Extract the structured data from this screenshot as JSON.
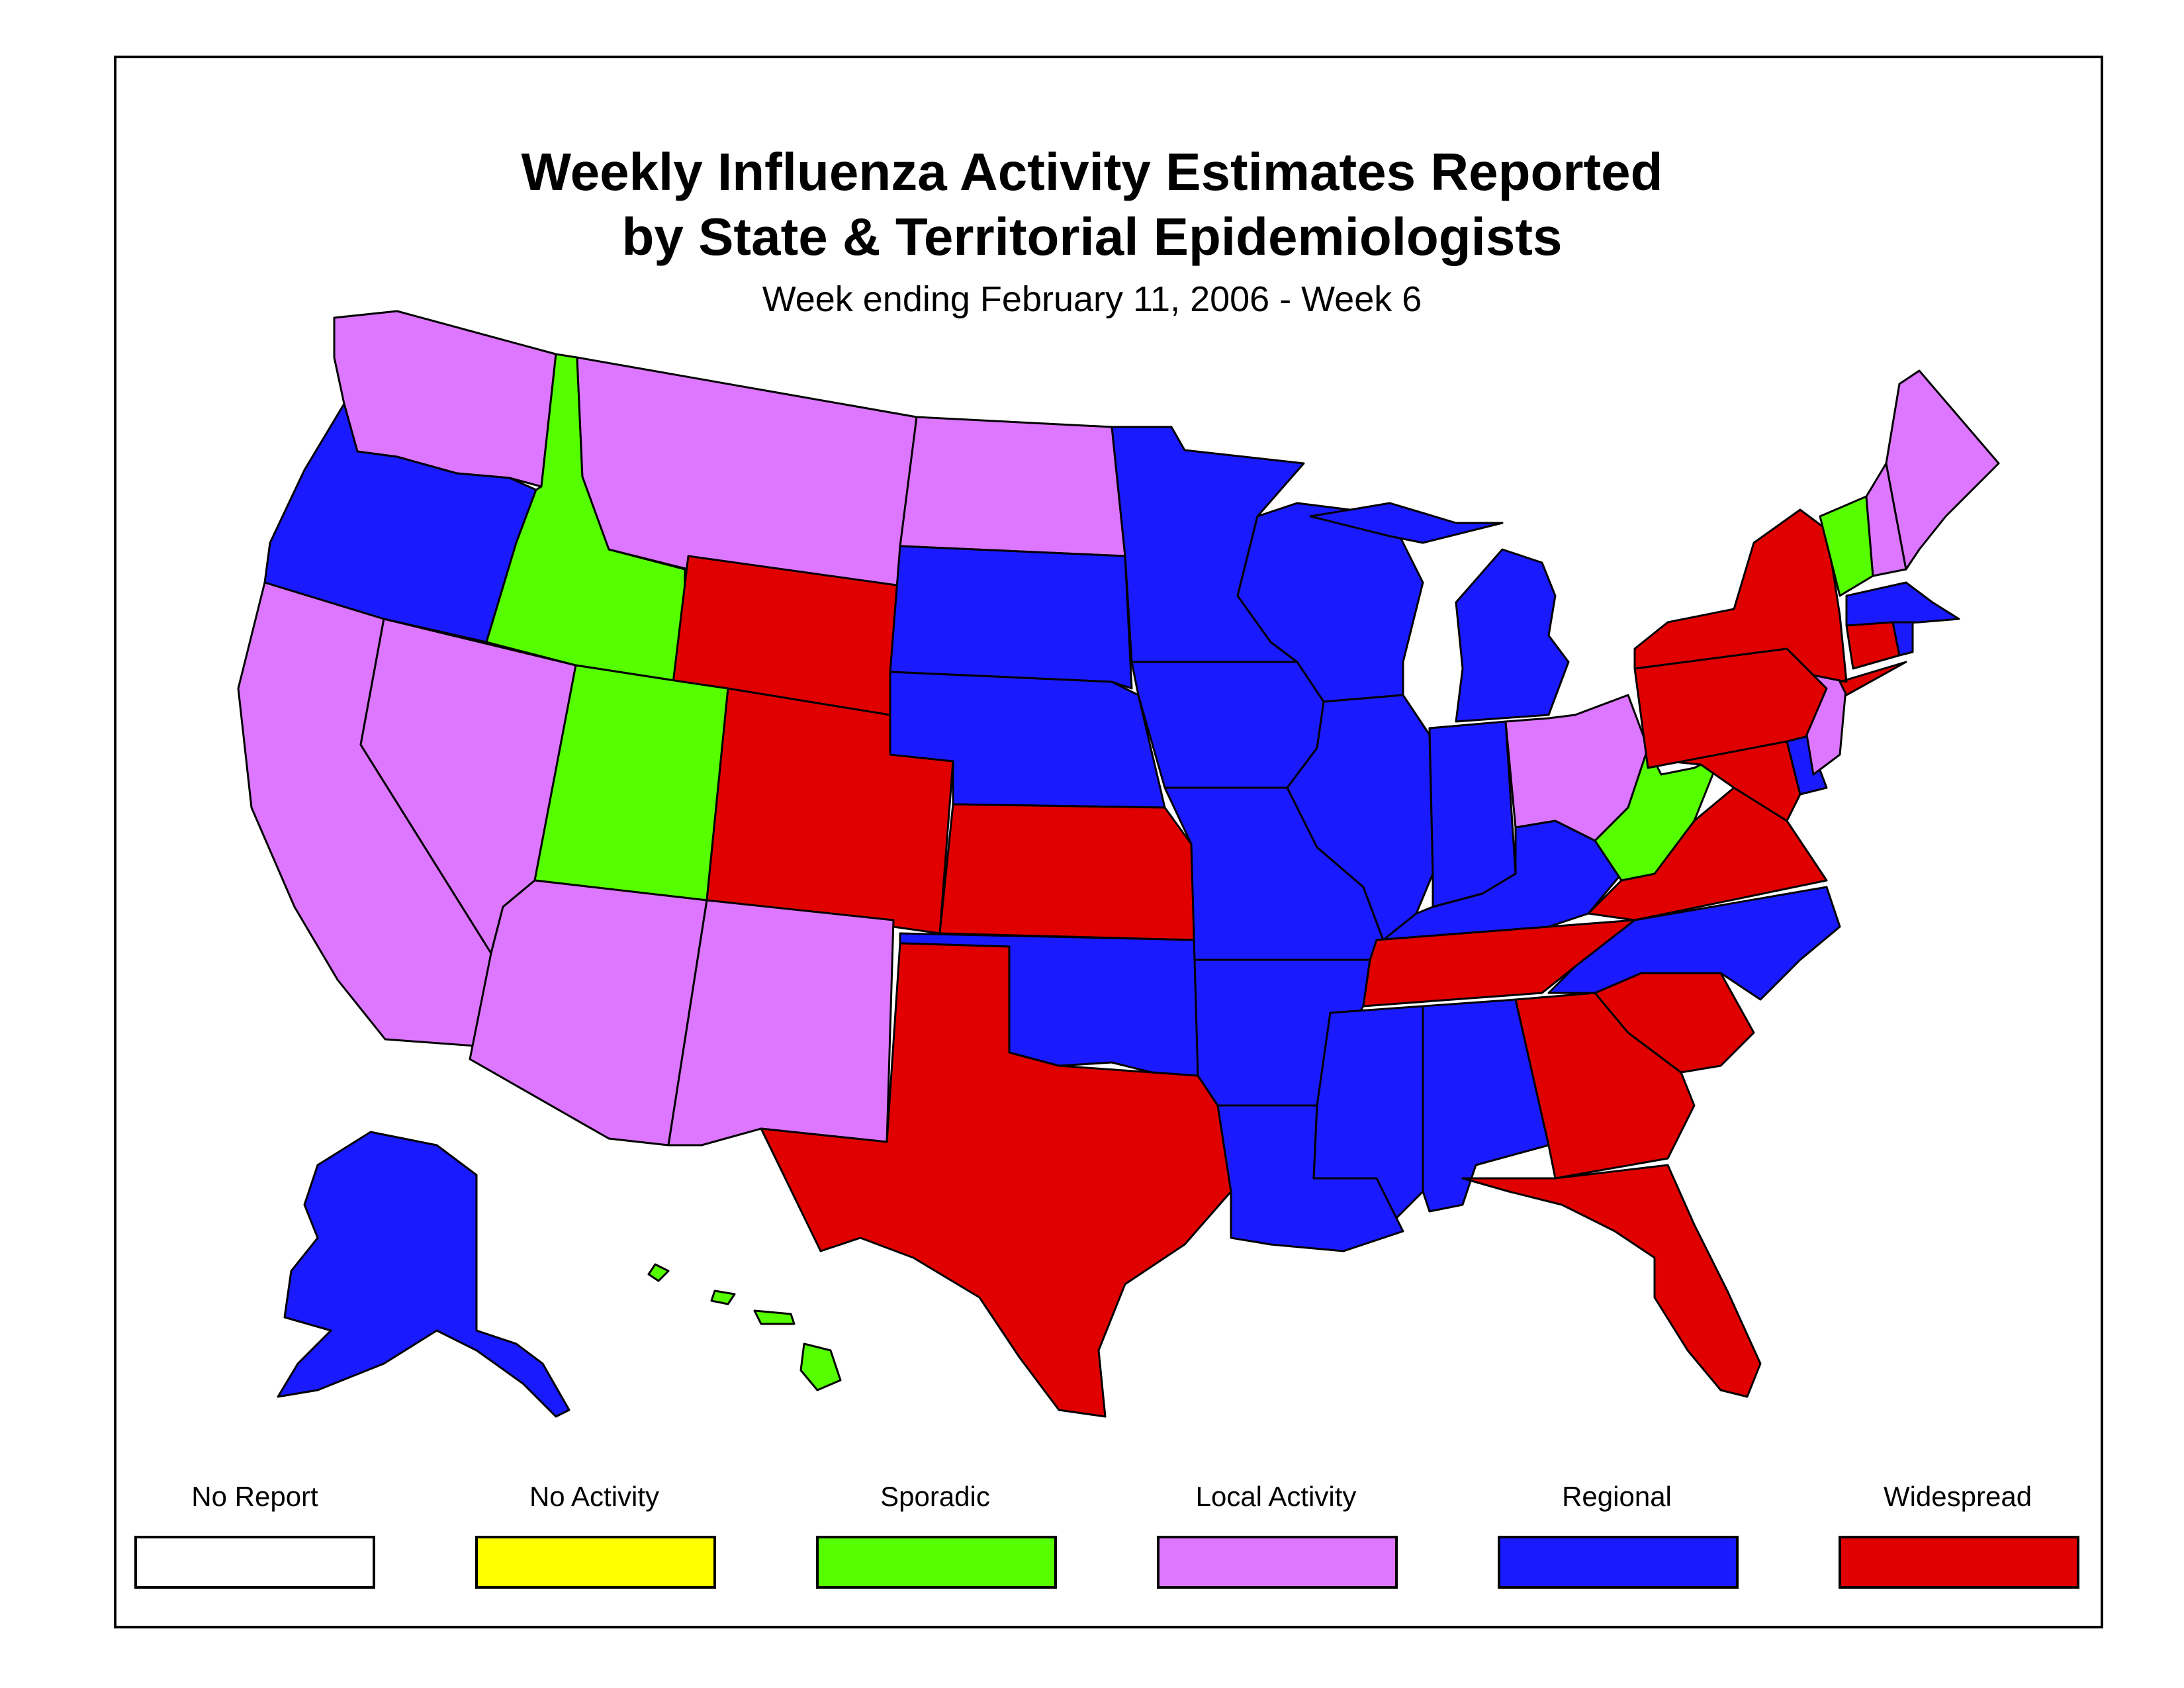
{
  "title_line1": "Weekly Influenza Activity Estimates Reported",
  "title_line2": "by State & Territorial Epidemiologists",
  "subtitle": "Week ending February 11, 2006 - Week 6",
  "legend": [
    {
      "label": "No Report",
      "color": "#ffffff"
    },
    {
      "label": "No Activity",
      "color": "#ffff00"
    },
    {
      "label": "Sporadic",
      "color": "#55ff00"
    },
    {
      "label": "Local Activity",
      "color": "#dd77ff"
    },
    {
      "label": "Regional",
      "color": "#1a1aff"
    },
    {
      "label": "Widespread",
      "color": "#e00000"
    }
  ],
  "activity_by_state": {
    "Washington": "Local Activity",
    "Oregon": "Regional",
    "California": "Local Activity",
    "Nevada": "Local Activity",
    "Idaho": "Sporadic",
    "Montana": "Local Activity",
    "Wyoming": "Widespread",
    "Utah": "Sporadic",
    "Arizona": "Local Activity",
    "Colorado": "Widespread",
    "New Mexico": "Local Activity",
    "North Dakota": "Local Activity",
    "South Dakota": "Regional",
    "Nebraska": "Regional",
    "Kansas": "Widespread",
    "Oklahoma": "Regional",
    "Texas": "Widespread",
    "Minnesota": "Regional",
    "Iowa": "Regional",
    "Missouri": "Regional",
    "Arkansas": "Regional",
    "Louisiana": "Regional",
    "Wisconsin": "Regional",
    "Illinois": "Regional",
    "Michigan": "Regional",
    "Indiana": "Regional",
    "Ohio": "Local Activity",
    "Kentucky": "Regional",
    "Tennessee": "Widespread",
    "Mississippi": "Regional",
    "Alabama": "Regional",
    "Georgia": "Widespread",
    "Florida": "Widespread",
    "South Carolina": "Widespread",
    "North Carolina": "Regional",
    "Virginia": "Widespread",
    "West Virginia": "Sporadic",
    "Maryland": "Widespread",
    "Delaware": "Regional",
    "New Jersey": "Local Activity",
    "Pennsylvania": "Widespread",
    "New York": "Widespread",
    "Connecticut": "Widespread",
    "Rhode Island": "Regional",
    "Massachusetts": "Regional",
    "Vermont": "Sporadic",
    "New Hampshire": "Local Activity",
    "Maine": "Local Activity",
    "Alaska": "Regional",
    "Hawaii": "Sporadic"
  }
}
